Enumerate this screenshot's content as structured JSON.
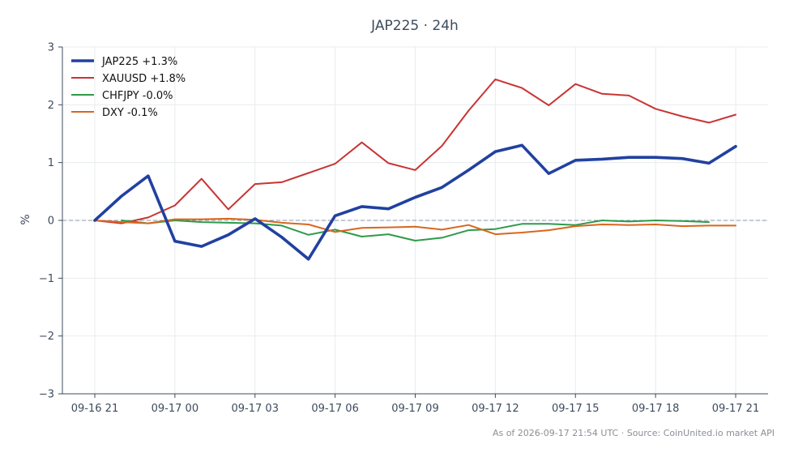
{
  "chart_data": {
    "type": "line",
    "title": "JAP225 · 24h",
    "ylabel": "%",
    "xlabel": "",
    "ylim": [
      -3,
      3
    ],
    "x_range": [
      0,
      24
    ],
    "x_tick_positions": [
      0,
      3,
      6,
      9,
      12,
      15,
      18,
      21,
      24
    ],
    "x_tick_labels": [
      "09-16 21",
      "09-17 00",
      "09-17 03",
      "09-17 06",
      "09-17 09",
      "09-17 12",
      "09-17 15",
      "09-17 18",
      "09-17 21"
    ],
    "y_ticks": [
      3,
      2,
      1,
      0,
      -1,
      -2,
      -3
    ],
    "y_tick_labels": [
      "3",
      "2",
      "1",
      "0",
      "−1",
      "−2",
      "−3"
    ],
    "grid": true,
    "zero_line": true,
    "legend_position": "top-left",
    "series": [
      {
        "name": "JAP225 +1.3%",
        "color": "#2141a0",
        "emphasis": true,
        "x": [
          0,
          1,
          2,
          3,
          4,
          5,
          6,
          7,
          8,
          9,
          10,
          11,
          12,
          13,
          14,
          15,
          16,
          17,
          18,
          19,
          20,
          21,
          22,
          23,
          24
        ],
        "y": [
          0.0,
          0.42,
          0.77,
          -0.36,
          -0.45,
          -0.25,
          0.03,
          -0.29,
          -0.67,
          0.08,
          0.24,
          0.2,
          0.4,
          0.57,
          0.87,
          1.19,
          1.3,
          0.81,
          1.04,
          1.06,
          1.09,
          1.09,
          1.07,
          0.99,
          1.28
        ]
      },
      {
        "name": "XAUUSD +1.8%",
        "color": "#c93434",
        "emphasis": false,
        "x": [
          0,
          1,
          2,
          3,
          4,
          5,
          6,
          7,
          8,
          9,
          10,
          11,
          12,
          13,
          14,
          15,
          16,
          17,
          18,
          19,
          20,
          21,
          22,
          23,
          24
        ],
        "y": [
          0.0,
          -0.05,
          0.05,
          0.26,
          0.72,
          0.19,
          0.63,
          0.66,
          0.82,
          0.98,
          1.35,
          0.99,
          0.87,
          1.29,
          1.9,
          2.44,
          2.29,
          1.99,
          2.36,
          2.19,
          2.16,
          1.93,
          1.8,
          1.69,
          1.83
        ]
      },
      {
        "name": "CHFJPY -0.0%",
        "color": "#2e9a4a",
        "emphasis": false,
        "x": [
          1,
          2,
          3,
          4,
          5,
          6,
          7,
          8,
          9,
          10,
          11,
          12,
          13,
          14,
          15,
          16,
          17,
          18,
          19,
          20,
          21,
          22,
          23
        ],
        "y": [
          0.0,
          -0.05,
          0.0,
          -0.03,
          -0.04,
          -0.05,
          -0.09,
          -0.25,
          -0.16,
          -0.28,
          -0.24,
          -0.35,
          -0.3,
          -0.17,
          -0.15,
          -0.06,
          -0.06,
          -0.08,
          0.0,
          -0.02,
          0.0,
          -0.01,
          -0.03
        ]
      },
      {
        "name": "DXY -0.1%",
        "color": "#d9661e",
        "emphasis": false,
        "x": [
          0,
          1,
          2,
          3,
          4,
          5,
          6,
          7,
          8,
          9,
          10,
          11,
          12,
          13,
          14,
          15,
          16,
          17,
          18,
          19,
          20,
          21,
          22,
          23,
          24
        ],
        "y": [
          0.0,
          -0.03,
          -0.05,
          0.02,
          0.02,
          0.03,
          0.01,
          -0.04,
          -0.07,
          -0.2,
          -0.13,
          -0.12,
          -0.11,
          -0.16,
          -0.08,
          -0.24,
          -0.21,
          -0.17,
          -0.1,
          -0.07,
          -0.08,
          -0.07,
          -0.1,
          -0.09,
          -0.09
        ]
      }
    ]
  },
  "footer": {
    "text": "As of 2026-09-17 21:54 UTC · Source: CoinUnited.io market API"
  },
  "colors": {
    "axis": "#3d4b5c",
    "grid": "#e8ebee",
    "zero_line": "#8797aa"
  }
}
